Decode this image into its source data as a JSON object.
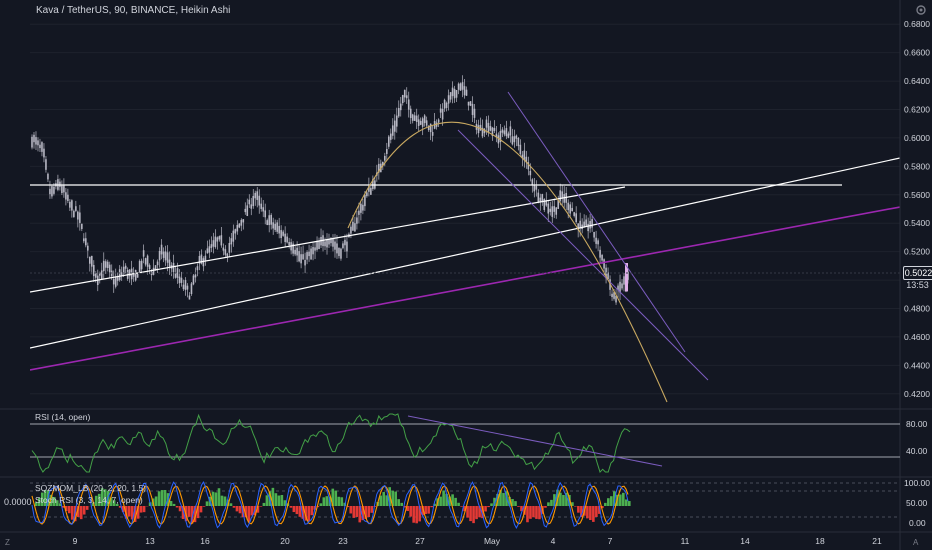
{
  "header": {
    "title": "Kava / TetherUS, 90, BINANCE, Heikin Ashi"
  },
  "price_axis": {
    "labels": [
      "0.6800",
      "0.6600",
      "0.6400",
      "0.6200",
      "0.6000",
      "0.5800",
      "0.5600",
      "0.5400",
      "0.5200",
      "0.5000",
      "0.4800",
      "0.4600",
      "0.4400",
      "0.4200"
    ],
    "current_price": "0.5022",
    "countdown": "13:53"
  },
  "time_axis": {
    "labels": [
      "9",
      "13",
      "16",
      "20",
      "23",
      "27",
      "May",
      "4",
      "7",
      "11",
      "14",
      "18",
      "21"
    ]
  },
  "indicators": {
    "rsi_label": "RSI (14, open)",
    "rsi_levels": [
      "80.00",
      "40.00"
    ],
    "sqzmom_label": "SQZMOM_LB (20, 2, 20, 1.5)",
    "stoch_label": "Stoch RSI (3, 3, 14, 7, open)",
    "lower_levels": [
      "100.00",
      "50.00",
      "0.00"
    ],
    "zero_value": "0.0000"
  },
  "corner": {
    "left": "Z",
    "right": "A"
  },
  "colors": {
    "background": "#131722",
    "candle": "#b8b8c4",
    "purple": "#9c27b0",
    "white_line": "#ffffff",
    "arc": "#c8a860",
    "rsi": "#43a047",
    "hist_green": "#4caf50",
    "hist_red": "#e53935",
    "stoch_k": "#2962ff",
    "stoch_d": "#ff9800"
  },
  "chart_data": {
    "type": "candlestick",
    "symbol": "Kava / TetherUS",
    "interval": "90",
    "exchange": "BINANCE",
    "style": "Heikin Ashi",
    "ylim": [
      0.41,
      0.69
    ],
    "current_price": 0.5022,
    "price_trace": [
      [
        0,
        0.6
      ],
      [
        0.6,
        0.59
      ],
      [
        1,
        0.56
      ],
      [
        1.5,
        0.568
      ],
      [
        2,
        0.553
      ],
      [
        2.5,
        0.545
      ],
      [
        3,
        0.52
      ],
      [
        3.5,
        0.502
      ],
      [
        4,
        0.51
      ],
      [
        4.5,
        0.498
      ],
      [
        5,
        0.508
      ],
      [
        5.5,
        0.5
      ],
      [
        6,
        0.516
      ],
      [
        6.5,
        0.505
      ],
      [
        7,
        0.52
      ],
      [
        7.5,
        0.51
      ],
      [
        8,
        0.498
      ],
      [
        8.5,
        0.49
      ],
      [
        9,
        0.512
      ],
      [
        9.5,
        0.52
      ],
      [
        10,
        0.528
      ],
      [
        10.5,
        0.52
      ],
      [
        11,
        0.535
      ],
      [
        11.5,
        0.548
      ],
      [
        12,
        0.56
      ],
      [
        12.5,
        0.545
      ],
      [
        13,
        0.538
      ],
      [
        13.5,
        0.532
      ],
      [
        14,
        0.525
      ],
      [
        14.5,
        0.513
      ],
      [
        15,
        0.518
      ],
      [
        15.5,
        0.525
      ],
      [
        16,
        0.53
      ],
      [
        16.5,
        0.52
      ],
      [
        17,
        0.528
      ],
      [
        17.5,
        0.545
      ],
      [
        18,
        0.56
      ],
      [
        18.5,
        0.572
      ],
      [
        19,
        0.59
      ],
      [
        19.5,
        0.61
      ],
      [
        20,
        0.63
      ],
      [
        20.5,
        0.615
      ],
      [
        21,
        0.612
      ],
      [
        21.5,
        0.605
      ],
      [
        22,
        0.618
      ],
      [
        22.5,
        0.628
      ],
      [
        23,
        0.638
      ],
      [
        23.5,
        0.625
      ],
      [
        24,
        0.605
      ],
      [
        24.5,
        0.61
      ],
      [
        25,
        0.6
      ],
      [
        25.5,
        0.605
      ],
      [
        26,
        0.598
      ],
      [
        26.5,
        0.585
      ],
      [
        27,
        0.565
      ],
      [
        27.5,
        0.555
      ],
      [
        28,
        0.548
      ],
      [
        28.5,
        0.56
      ],
      [
        29,
        0.55
      ],
      [
        29.5,
        0.535
      ],
      [
        30,
        0.54
      ],
      [
        30.5,
        0.52
      ],
      [
        31,
        0.5
      ],
      [
        31.2,
        0.485
      ],
      [
        31.6,
        0.495
      ],
      [
        32,
        0.502
      ]
    ]
  }
}
